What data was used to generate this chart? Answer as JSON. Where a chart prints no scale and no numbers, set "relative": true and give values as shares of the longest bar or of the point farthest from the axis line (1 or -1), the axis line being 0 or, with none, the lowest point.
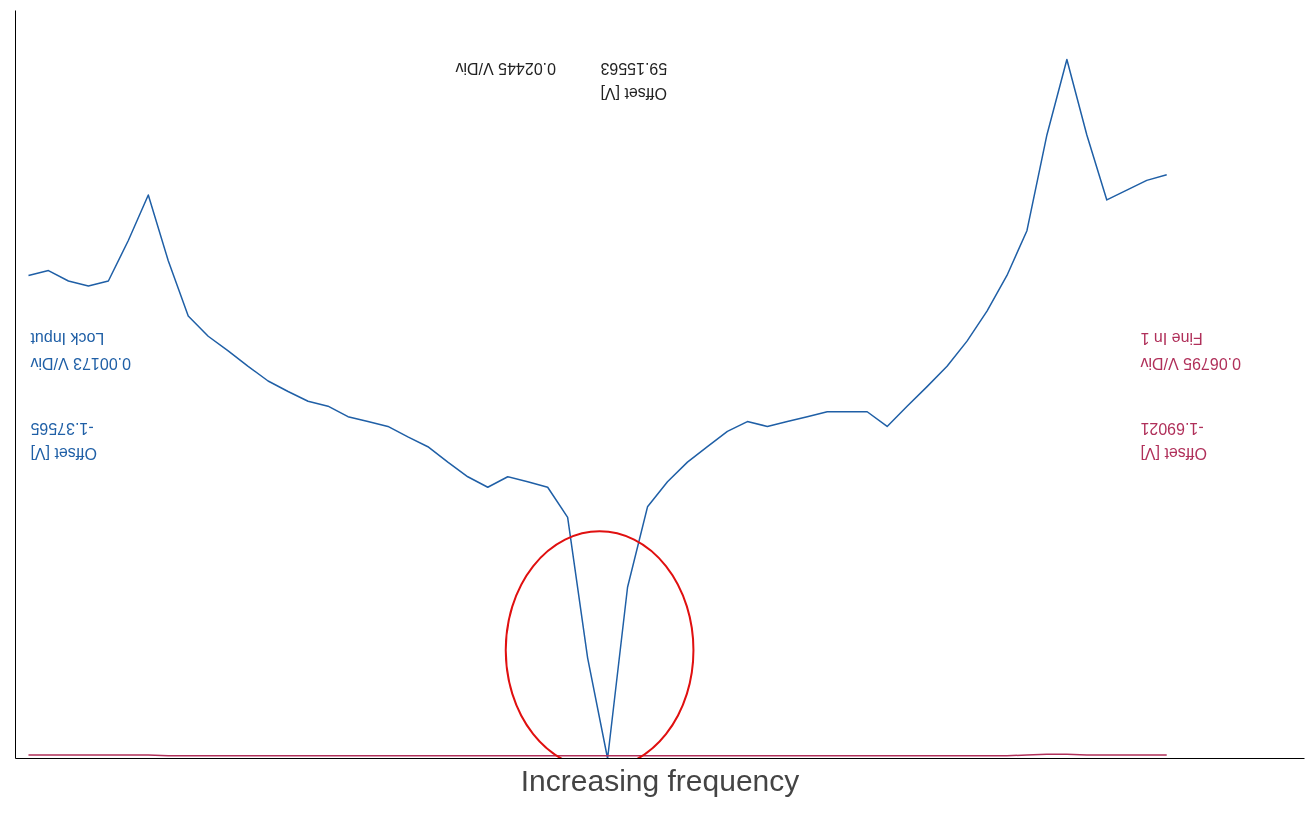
{
  "chart_data": {
    "type": "line",
    "relative": true,
    "xlabel": "Increasing frequency",
    "categories": [
      null,
      null,
      null,
      null,
      null,
      null,
      null,
      null,
      null,
      null,
      null,
      null,
      null,
      null,
      null,
      null,
      null,
      null,
      null,
      null,
      null,
      null,
      null,
      null,
      null,
      null,
      null,
      null,
      null,
      null,
      null,
      null,
      null,
      null,
      null,
      null,
      null,
      null,
      null,
      null,
      null,
      null,
      null,
      null,
      null,
      null,
      null,
      null,
      null,
      null,
      null,
      null,
      null,
      null,
      null,
      null,
      null,
      null
    ],
    "series": [
      {
        "color": "#1f5fa6",
        "values": [
          0.691,
          0.698,
          0.683,
          0.676,
          0.683,
          0.741,
          0.806,
          0.712,
          0.633,
          0.604,
          0.583,
          0.561,
          0.54,
          0.525,
          0.511,
          0.504,
          0.489,
          0.482,
          0.475,
          0.46,
          0.446,
          0.424,
          0.403,
          0.388,
          0.403,
          0.396,
          0.388,
          0.345,
          0.144,
          0,
          0.245,
          0.36,
          0.396,
          0.424,
          0.446,
          0.468,
          0.482,
          0.475,
          0.482,
          0.489,
          0.496,
          0.496,
          0.496,
          0.475,
          0.504,
          0.532,
          0.561,
          0.597,
          0.64,
          0.691,
          0.755,
          0.892,
          1,
          0.892,
          0.799,
          0.813,
          0.827,
          0.835
        ]
      },
      {
        "color": "#b0305a",
        "values": [
          0.005,
          0.005,
          0.005,
          0.005,
          0.005,
          0.005,
          0.005,
          0.004,
          0.004,
          0.004,
          0.004,
          0.004,
          0.004,
          0.004,
          0.004,
          0.004,
          0.004,
          0.004,
          0.004,
          0.004,
          0.004,
          0.004,
          0.004,
          0.004,
          0.004,
          0.004,
          0.004,
          0.004,
          0.004,
          0.004,
          0.004,
          0.004,
          0.004,
          0.004,
          0.004,
          0.004,
          0.004,
          0.004,
          0.004,
          0.004,
          0.004,
          0.004,
          0.004,
          0.004,
          0.004,
          0.004,
          0.004,
          0.004,
          0.004,
          0.004,
          0.005,
          0.006,
          0.006,
          0.005,
          0.005,
          0.005,
          0.005,
          0.005
        ]
      }
    ],
    "annotations": [
      "0.02445 V/Div",
      "59.15563",
      "Offset [V]",
      "0.00173 V/Div",
      "Lock Input",
      "-1.37565",
      "Offset [V]",
      "0.06795 V/Div",
      "Fine In 1",
      "-1.69021",
      "Offset [V]"
    ]
  }
}
